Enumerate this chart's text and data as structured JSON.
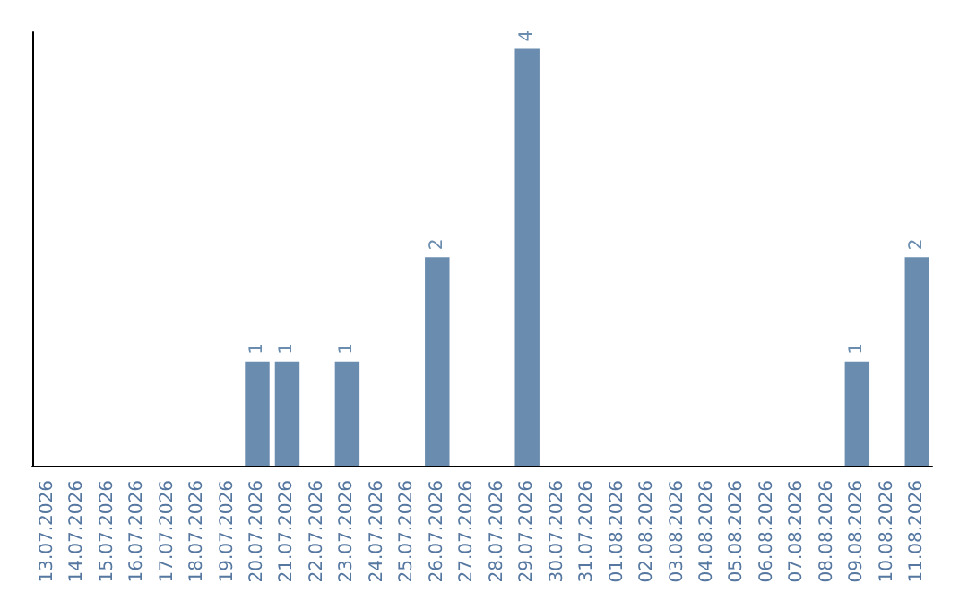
{
  "chart_data": {
    "type": "bar",
    "categories": [
      "13.07.2026",
      "14.07.2026",
      "15.07.2026",
      "16.07.2026",
      "17.07.2026",
      "18.07.2026",
      "19.07.2026",
      "20.07.2026",
      "21.07.2026",
      "22.07.2026",
      "23.07.2026",
      "24.07.2026",
      "25.07.2026",
      "26.07.2026",
      "27.07.2026",
      "28.07.2026",
      "29.07.2026",
      "30.07.2026",
      "31.07.2026",
      "01.08.2026",
      "02.08.2026",
      "03.08.2026",
      "04.08.2026",
      "05.08.2026",
      "06.08.2026",
      "07.08.2026",
      "08.08.2026",
      "09.08.2026",
      "10.08.2026",
      "11.08.2026"
    ],
    "values": [
      0,
      0,
      0,
      0,
      0,
      0,
      0,
      1,
      1,
      0,
      1,
      0,
      0,
      2,
      0,
      0,
      4,
      0,
      0,
      0,
      0,
      0,
      0,
      0,
      0,
      0,
      0,
      1,
      0,
      2
    ],
    "value_labels": [
      null,
      null,
      null,
      null,
      null,
      null,
      null,
      "1",
      "1",
      null,
      "1",
      null,
      null,
      "2",
      null,
      null,
      "4",
      null,
      null,
      null,
      null,
      null,
      null,
      null,
      null,
      null,
      null,
      "1",
      null,
      "2"
    ],
    "color": "#6a8caf"
  }
}
